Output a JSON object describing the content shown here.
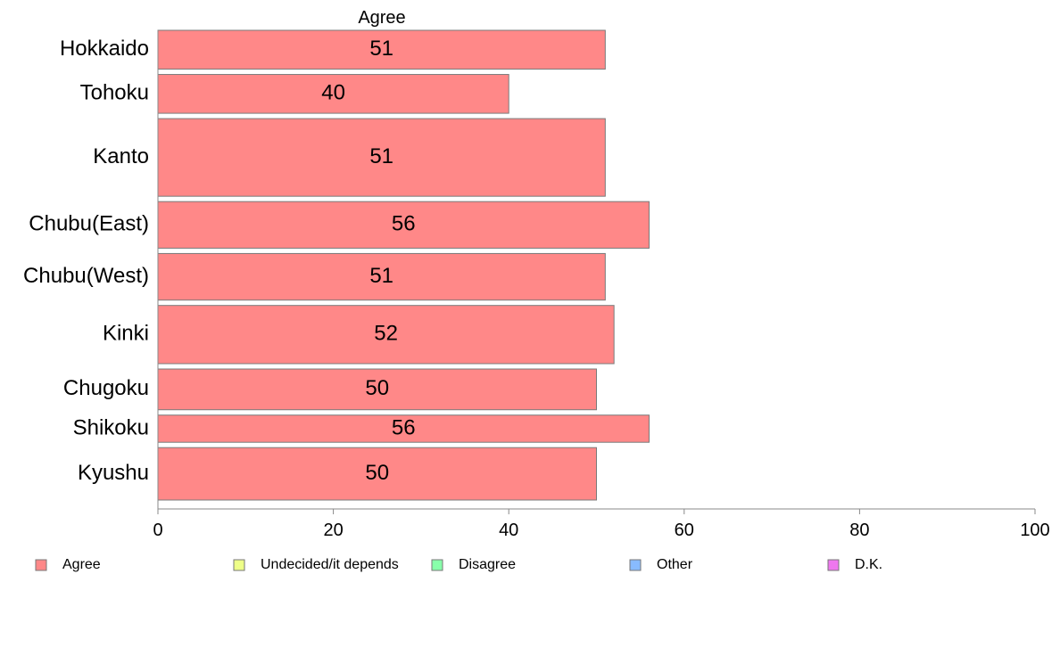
{
  "chart_data": {
    "type": "bar",
    "orientation": "horizontal",
    "column_header": "Agree",
    "categories": [
      "Hokkaido",
      "Tohoku",
      "Kanto",
      "Chubu(East)",
      "Chubu(West)",
      "Kinki",
      "Chugoku",
      "Shikoku",
      "Kyushu"
    ],
    "series": [
      {
        "name": "Agree",
        "values": [
          51,
          40,
          51,
          56,
          51,
          52,
          50,
          56,
          50
        ],
        "color": "#ff8888"
      }
    ],
    "data_labels": [
      "51",
      "40",
      "51",
      "56",
      "51",
      "52",
      "50",
      "56",
      "50"
    ],
    "xlim": [
      0,
      100
    ],
    "xticks": [
      "0",
      "20",
      "40",
      "60",
      "80",
      "100"
    ],
    "bar_weights": [
      1,
      1,
      2,
      1.2,
      1.2,
      1.5,
      1.05,
      0.7,
      1.35
    ],
    "grid": false,
    "legend": {
      "position": "bottom",
      "items": [
        {
          "label": "Agree",
          "color": "#ff8888"
        },
        {
          "label": "Undecided/it depends",
          "color": "#eeff88"
        },
        {
          "label": "Disagree",
          "color": "#88ffaa"
        },
        {
          "label": "Other",
          "color": "#88bbff"
        },
        {
          "label": "D.K.",
          "color": "#ee77ee"
        }
      ]
    }
  }
}
